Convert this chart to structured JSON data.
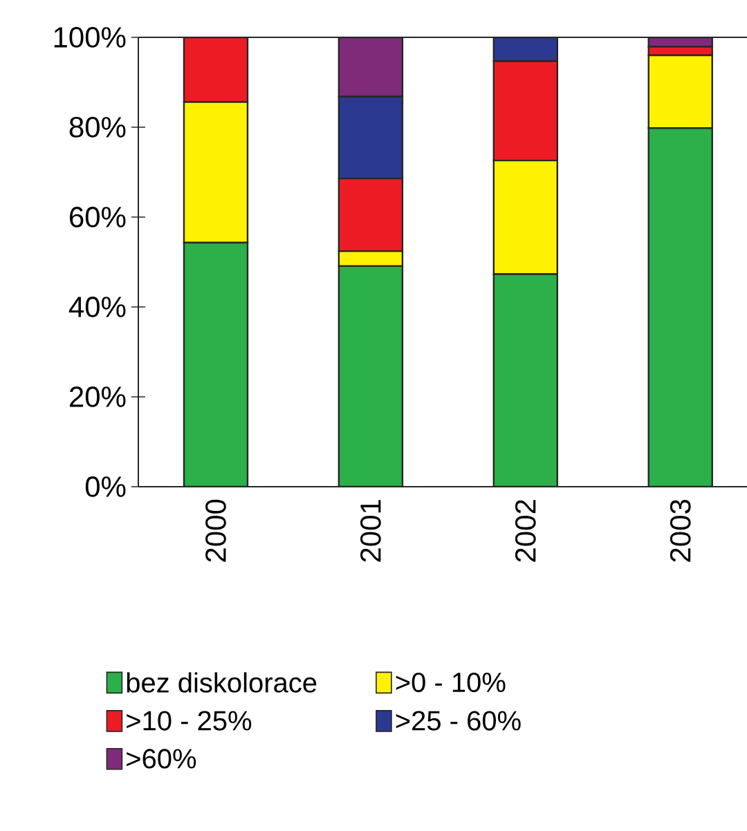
{
  "chart_data": {
    "type": "bar",
    "stacked": true,
    "categories": [
      "2000",
      "2001",
      "2002",
      "2003"
    ],
    "series": [
      {
        "name": "bez diskolorace",
        "color": "#2bb04a",
        "values": [
          54.3,
          49.1,
          47.3,
          79.8
        ]
      },
      {
        "name": ">0 - 10%",
        "color": "#fff200",
        "values": [
          31.3,
          3.3,
          25.3,
          16.2
        ]
      },
      {
        "name": ">10 - 25%",
        "color": "#ed1c24",
        "values": [
          14.4,
          16.2,
          22.1,
          1.9
        ]
      },
      {
        "name": ">25 - 60%",
        "color": "#2b3990",
        "values": [
          0,
          18.2,
          5.3,
          0
        ]
      },
      {
        "name": ">60%",
        "color": "#7f2b7a",
        "values": [
          0,
          13.2,
          0,
          2.1
        ]
      }
    ],
    "ylim": [
      0,
      100
    ],
    "yticks": [
      {
        "value": 0,
        "label": "0%"
      },
      {
        "value": 20,
        "label": "20%"
      },
      {
        "value": 40,
        "label": "40%"
      },
      {
        "value": 60,
        "label": "60%"
      },
      {
        "value": 80,
        "label": "80%"
      },
      {
        "value": 100,
        "label": "100%"
      }
    ],
    "legend": "bottom",
    "grid": false
  }
}
